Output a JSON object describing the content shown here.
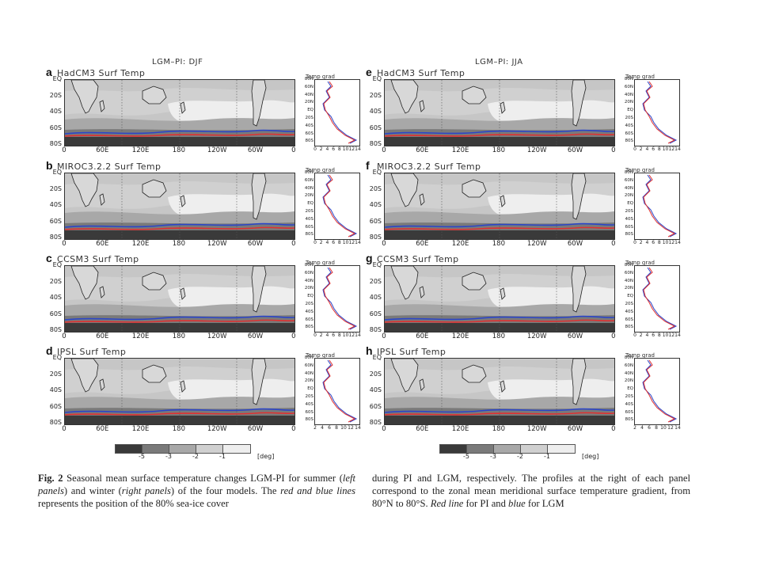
{
  "column_headers": {
    "left": "LGM–PI: DJF",
    "right": "LGM–PI: JJA"
  },
  "panels": [
    {
      "letter": "a",
      "title": "HadCM3 Surf Temp"
    },
    {
      "letter": "b",
      "title": "MIROC3.2.2 Surf Temp"
    },
    {
      "letter": "c",
      "title": "CCSM3 Surf Temp"
    },
    {
      "letter": "d",
      "title": "IPSL Surf Temp"
    },
    {
      "letter": "e",
      "title": "HadCM3 Surf Temp"
    },
    {
      "letter": "f",
      "title": "MIROC3.2.2 Surf Temp"
    },
    {
      "letter": "g",
      "title": "CCSM3 Surf Temp"
    },
    {
      "letter": "h",
      "title": "IPSL Surf Temp"
    }
  ],
  "map_lat_labels": [
    "EQ",
    "20S",
    "40S",
    "60S",
    "80S"
  ],
  "map_lon_labels": [
    "0",
    "60E",
    "120E",
    "180",
    "120W",
    "60W",
    "0"
  ],
  "profile": {
    "title": "Temp grad",
    "lat_labels": [
      "80N",
      "60N",
      "40N",
      "20N",
      "EQ",
      "20S",
      "40S",
      "60S",
      "80S"
    ],
    "x_ticks": [
      "0",
      "2",
      "4",
      "6",
      "8",
      "10",
      "12",
      "14"
    ],
    "x_ticks_short": [
      "2",
      "4",
      "6",
      "8",
      "10",
      "12",
      "14"
    ]
  },
  "colorbar": {
    "ticks": [
      "-5",
      "-3",
      "-2",
      "-1"
    ],
    "unit": "[deg]",
    "colors": [
      "#3a3a3a",
      "#7a7a7a",
      "#a8a8a8",
      "#d0d0d0",
      "#eeeeee"
    ]
  },
  "line_colors": {
    "pi": "#e03030",
    "lgm": "#2b45c8"
  },
  "caption": {
    "fig_label": "Fig. 2",
    "left_p1": " Seasonal mean surface temperature changes LGM-PI for summer (",
    "left_it1": "left panels",
    "left_p2": ") and winter (",
    "left_it2": "right panels",
    "left_p3": ") of the four models. The ",
    "left_it3": "red and blue lines",
    "left_p4": " represents the position of the 80% sea-ice cover",
    "right_p1": "during PI and LGM, respectively. The profiles at the right of each panel correspond to the zonal mean meridional surface temperature gradient, from 80°N to 80°S. ",
    "right_it1": "Red line",
    "right_p2": " for PI and ",
    "right_it2": "blue",
    "right_p3": " for LGM"
  }
}
